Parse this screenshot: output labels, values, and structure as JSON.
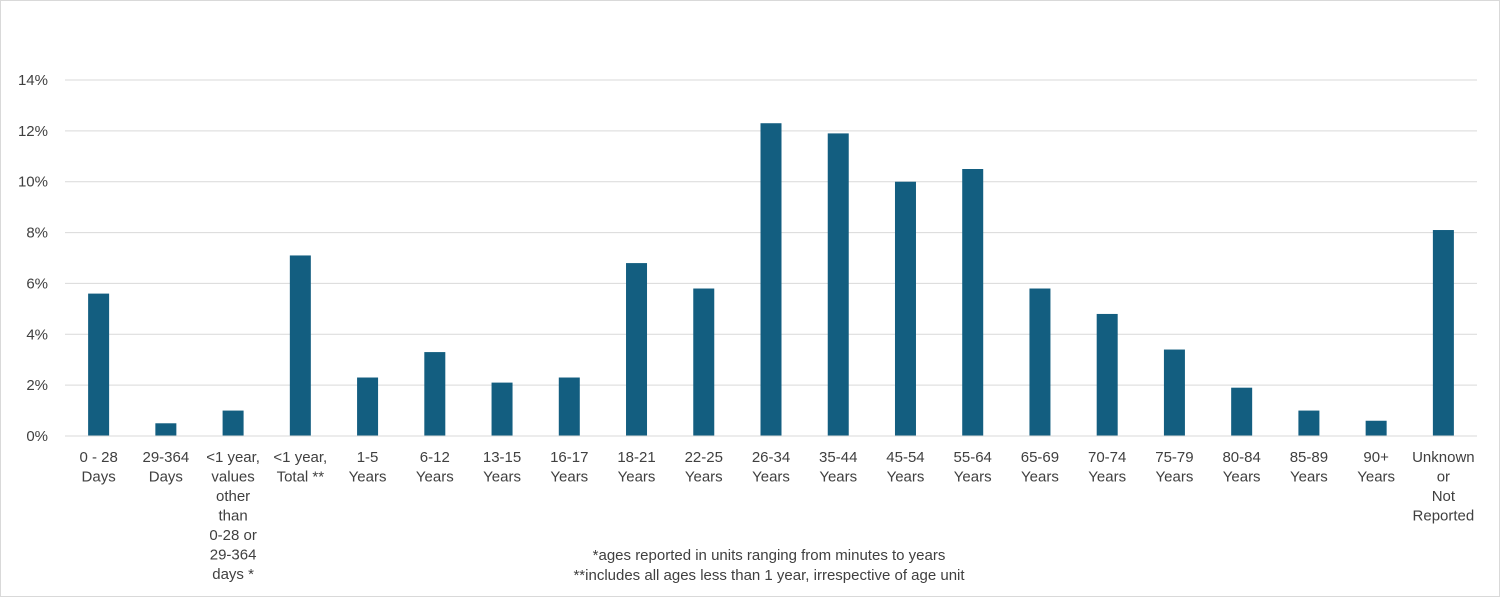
{
  "chart_data": {
    "type": "bar",
    "title": "",
    "xlabel": "",
    "ylabel": "",
    "ylim": [
      0,
      14
    ],
    "y_ticks": [
      "0%",
      "2%",
      "4%",
      "6%",
      "8%",
      "10%",
      "12%",
      "14%"
    ],
    "y_tick_values": [
      0,
      2,
      4,
      6,
      8,
      10,
      12,
      14
    ],
    "grid": true,
    "legend": "none",
    "bar_color": "#135e80",
    "categories": [
      "0 - 28 Days",
      "29-364 Days",
      "<1 year, values other than 0-28 or 29-364 days *",
      "<1 year, Total **",
      "1-5 Years",
      "6-12 Years",
      "13-15 Years",
      "16-17 Years",
      "18-21 Years",
      "22-25 Years",
      "26-34 Years",
      "35-44 Years",
      "45-54 Years",
      "55-64 Years",
      "65-69 Years",
      "70-74 Years",
      "75-79 Years",
      "80-84 Years",
      "85-89 Years",
      "90+ Years",
      "Unknown or Not Reported"
    ],
    "category_label_lines": [
      [
        "0 - 28",
        "Days"
      ],
      [
        "29-364",
        "Days"
      ],
      [
        "<1 year,",
        "values",
        "other",
        "than",
        "0-28 or",
        "29-364",
        "days *"
      ],
      [
        "<1 year,",
        "Total **"
      ],
      [
        "1-5",
        "Years"
      ],
      [
        "6-12",
        "Years"
      ],
      [
        "13-15",
        "Years"
      ],
      [
        "16-17",
        "Years"
      ],
      [
        "18-21",
        "Years"
      ],
      [
        "22-25",
        "Years"
      ],
      [
        "26-34",
        "Years"
      ],
      [
        "35-44",
        "Years"
      ],
      [
        "45-54",
        "Years"
      ],
      [
        "55-64",
        "Years"
      ],
      [
        "65-69",
        "Years"
      ],
      [
        "70-74",
        "Years"
      ],
      [
        "75-79",
        "Years"
      ],
      [
        "80-84",
        "Years"
      ],
      [
        "85-89",
        "Years"
      ],
      [
        "90+",
        "Years"
      ],
      [
        "Unknown",
        "or",
        "Not",
        "Reported"
      ]
    ],
    "values": [
      5.6,
      0.5,
      1.0,
      7.1,
      2.3,
      3.3,
      2.1,
      2.3,
      6.8,
      5.8,
      12.3,
      11.9,
      10.0,
      10.5,
      5.8,
      4.8,
      3.4,
      1.9,
      1.0,
      0.6,
      8.1
    ],
    "unit": "%",
    "footnotes": [
      "*ages reported in units ranging from minutes to years",
      "**includes all ages less than 1 year, irrespective of age unit"
    ]
  }
}
